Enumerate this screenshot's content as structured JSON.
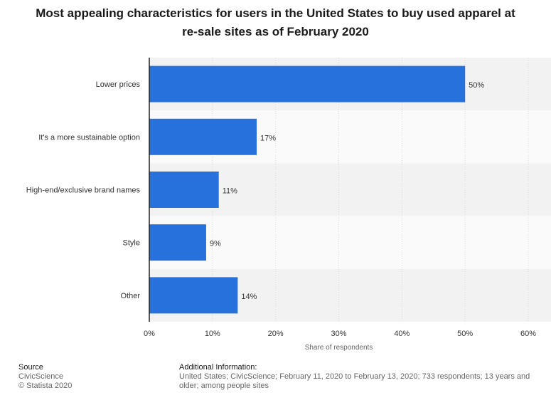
{
  "title_lines": [
    "Most appealing characteristics for users in the United States to buy used apparel at",
    "re-sale sites as of February 2020"
  ],
  "chart_data": {
    "type": "bar",
    "orientation": "horizontal",
    "categories": [
      "Lower prices",
      "It's a more sustainable option",
      "High-end/exclusive brand names",
      "Style",
      "Other"
    ],
    "values": [
      50,
      17,
      11,
      9,
      14
    ],
    "value_labels": [
      "50%",
      "17%",
      "11%",
      "9%",
      "14%"
    ],
    "xlabel": "Share of respondents",
    "xlim": [
      0,
      60
    ],
    "xticks": [
      0,
      10,
      20,
      30,
      40,
      50,
      60
    ],
    "xtick_labels": [
      "0%",
      "10%",
      "20%",
      "30%",
      "40%",
      "50%",
      "60%"
    ],
    "bar_color": "#2771dc",
    "band_colors": [
      "#f2f2f2",
      "#fafafa"
    ]
  },
  "source": {
    "heading": "Source",
    "lines": [
      "CivicScience",
      "© Statista 2020"
    ]
  },
  "additional": {
    "heading": "Additional Information:",
    "text": "United States; CivicScience; February 11, 2020 to February 13, 2020; 733 respondents; 13 years and older; among people sites"
  }
}
